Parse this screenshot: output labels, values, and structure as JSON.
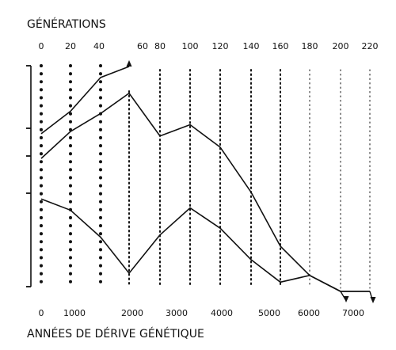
{
  "chart_data": {
    "type": "line",
    "title": "",
    "top_axis": {
      "label": "GÉNÉRATIONS",
      "ticks": [
        "0",
        "20",
        "40",
        "60",
        "80",
        "100",
        "120",
        "140",
        "160",
        "180",
        "200",
        "220"
      ]
    },
    "bottom_axis": {
      "label": "ANNÉES DE DÉRIVE GÉNÉTIQUE",
      "ticks": [
        "0",
        "1000",
        "2000",
        "3000",
        "4000",
        "5000",
        "6000",
        "7000"
      ]
    },
    "ylabel": "",
    "series": [
      {
        "x": [
          0,
          20,
          40,
          60
        ],
        "y": [
          0.68,
          0.78,
          0.93,
          0.97
        ]
      },
      {
        "x": [
          0,
          20,
          40,
          60,
          80,
          100,
          120,
          140,
          160,
          180,
          200,
          220
        ],
        "y": [
          0.57,
          0.69,
          0.77,
          0.86,
          0.67,
          0.72,
          0.62,
          0.42,
          0.18,
          0.05,
          0.0,
          0.0
        ]
      },
      {
        "x": [
          0,
          20,
          40,
          60,
          80,
          100,
          120,
          140,
          160,
          180,
          200,
          220
        ],
        "y": [
          0.39,
          0.34,
          0.22,
          0.06,
          0.23,
          0.35,
          0.26,
          0.12,
          0.02,
          0.05,
          0.0,
          0.0
        ]
      }
    ]
  }
}
